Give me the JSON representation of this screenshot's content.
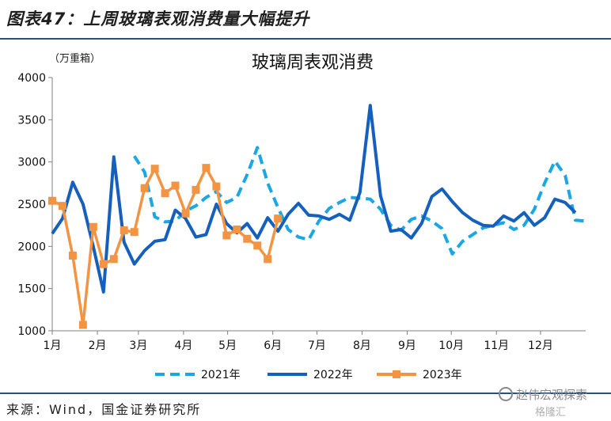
{
  "figure_title": "图表47：上周玻璃表观消费量大幅提升",
  "source_note": "来源：Wind，国金证券研究所",
  "watermark": "赵伟宏观探索",
  "watermark2": "格隆汇",
  "chart_data": {
    "type": "line",
    "title": "玻璃周表观消费",
    "unit_label": "（万重箱）",
    "ylim": [
      1000,
      4000
    ],
    "y_ticks": [
      1000,
      1500,
      2000,
      2500,
      3000,
      3500,
      4000
    ],
    "x_range": [
      1,
      53
    ],
    "x_ticks": [
      {
        "label": "1月",
        "week": 1
      },
      {
        "label": "2月",
        "week": 5.4
      },
      {
        "label": "3月",
        "week": 9.4
      },
      {
        "label": "4月",
        "week": 13.8
      },
      {
        "label": "5月",
        "week": 18.1
      },
      {
        "label": "6月",
        "week": 22.5
      },
      {
        "label": "7月",
        "week": 26.8
      },
      {
        "label": "8月",
        "week": 31.2
      },
      {
        "label": "9月",
        "week": 35.6
      },
      {
        "label": "10月",
        "week": 39.9
      },
      {
        "label": "11月",
        "week": 44.3
      },
      {
        "label": "12月",
        "week": 48.6
      }
    ],
    "legend_position": "bottom",
    "series": [
      {
        "name": "2021年",
        "color": "#1aa7e3",
        "style": "dashed",
        "points": [
          [
            9,
            3070
          ],
          [
            10,
            2880
          ],
          [
            11,
            2350
          ],
          [
            12,
            2290
          ],
          [
            13,
            2300
          ],
          [
            14,
            2420
          ],
          [
            15,
            2480
          ],
          [
            16,
            2580
          ],
          [
            17,
            2650
          ],
          [
            18,
            2520
          ],
          [
            19,
            2580
          ],
          [
            20,
            2850
          ],
          [
            21,
            3170
          ],
          [
            22,
            2750
          ],
          [
            23,
            2460
          ],
          [
            24,
            2200
          ],
          [
            25,
            2110
          ],
          [
            26,
            2080
          ],
          [
            27,
            2300
          ],
          [
            28,
            2450
          ],
          [
            29,
            2520
          ],
          [
            30,
            2580
          ],
          [
            31,
            2570
          ],
          [
            32,
            2560
          ],
          [
            33,
            2440
          ],
          [
            34,
            2250
          ],
          [
            35,
            2190
          ],
          [
            36,
            2320
          ],
          [
            37,
            2360
          ],
          [
            38,
            2300
          ],
          [
            39,
            2210
          ],
          [
            40,
            1910
          ],
          [
            41,
            2060
          ],
          [
            42,
            2140
          ],
          [
            43,
            2220
          ],
          [
            44,
            2250
          ],
          [
            45,
            2280
          ],
          [
            46,
            2200
          ],
          [
            47,
            2250
          ],
          [
            48,
            2440
          ],
          [
            49,
            2750
          ],
          [
            50,
            3010
          ],
          [
            51,
            2840
          ],
          [
            52,
            2310
          ],
          [
            53,
            2300
          ]
        ]
      },
      {
        "name": "2022年",
        "color": "#1560bd",
        "style": "solid",
        "points": [
          [
            1,
            2150
          ],
          [
            2,
            2330
          ],
          [
            3,
            2760
          ],
          [
            4,
            2500
          ],
          [
            5,
            2000
          ],
          [
            6,
            1460
          ],
          [
            7,
            3060
          ],
          [
            8,
            2050
          ],
          [
            9,
            1790
          ],
          [
            10,
            1950
          ],
          [
            11,
            2060
          ],
          [
            12,
            2080
          ],
          [
            13,
            2430
          ],
          [
            14,
            2330
          ],
          [
            15,
            2110
          ],
          [
            16,
            2140
          ],
          [
            17,
            2500
          ],
          [
            18,
            2270
          ],
          [
            19,
            2160
          ],
          [
            20,
            2270
          ],
          [
            21,
            2100
          ],
          [
            22,
            2340
          ],
          [
            23,
            2180
          ],
          [
            24,
            2380
          ],
          [
            25,
            2510
          ],
          [
            26,
            2370
          ],
          [
            27,
            2360
          ],
          [
            28,
            2320
          ],
          [
            29,
            2380
          ],
          [
            30,
            2310
          ],
          [
            31,
            2640
          ],
          [
            32,
            3670
          ],
          [
            33,
            2600
          ],
          [
            34,
            2180
          ],
          [
            35,
            2200
          ],
          [
            36,
            2100
          ],
          [
            37,
            2270
          ],
          [
            38,
            2590
          ],
          [
            39,
            2680
          ],
          [
            40,
            2530
          ],
          [
            41,
            2400
          ],
          [
            42,
            2310
          ],
          [
            43,
            2250
          ],
          [
            44,
            2240
          ],
          [
            45,
            2360
          ],
          [
            46,
            2300
          ],
          [
            47,
            2400
          ],
          [
            48,
            2250
          ],
          [
            49,
            2340
          ],
          [
            50,
            2560
          ],
          [
            51,
            2520
          ],
          [
            52,
            2400
          ]
        ]
      },
      {
        "name": "2023年",
        "color": "#f29442",
        "style": "solid-square",
        "points": [
          [
            1,
            2540
          ],
          [
            2,
            2480
          ],
          [
            3,
            1890
          ],
          [
            4,
            1070
          ],
          [
            5,
            2230
          ],
          [
            6,
            1790
          ],
          [
            7,
            1850
          ],
          [
            8,
            2190
          ],
          [
            9,
            2170
          ],
          [
            10,
            2690
          ],
          [
            11,
            2920
          ],
          [
            12,
            2630
          ],
          [
            13,
            2720
          ],
          [
            14,
            2390
          ],
          [
            15,
            2670
          ],
          [
            16,
            2930
          ],
          [
            17,
            2710
          ],
          [
            18,
            2130
          ],
          [
            19,
            2200
          ],
          [
            20,
            2090
          ],
          [
            21,
            2010
          ],
          [
            22,
            1850
          ],
          [
            23,
            2330
          ]
        ]
      }
    ]
  }
}
